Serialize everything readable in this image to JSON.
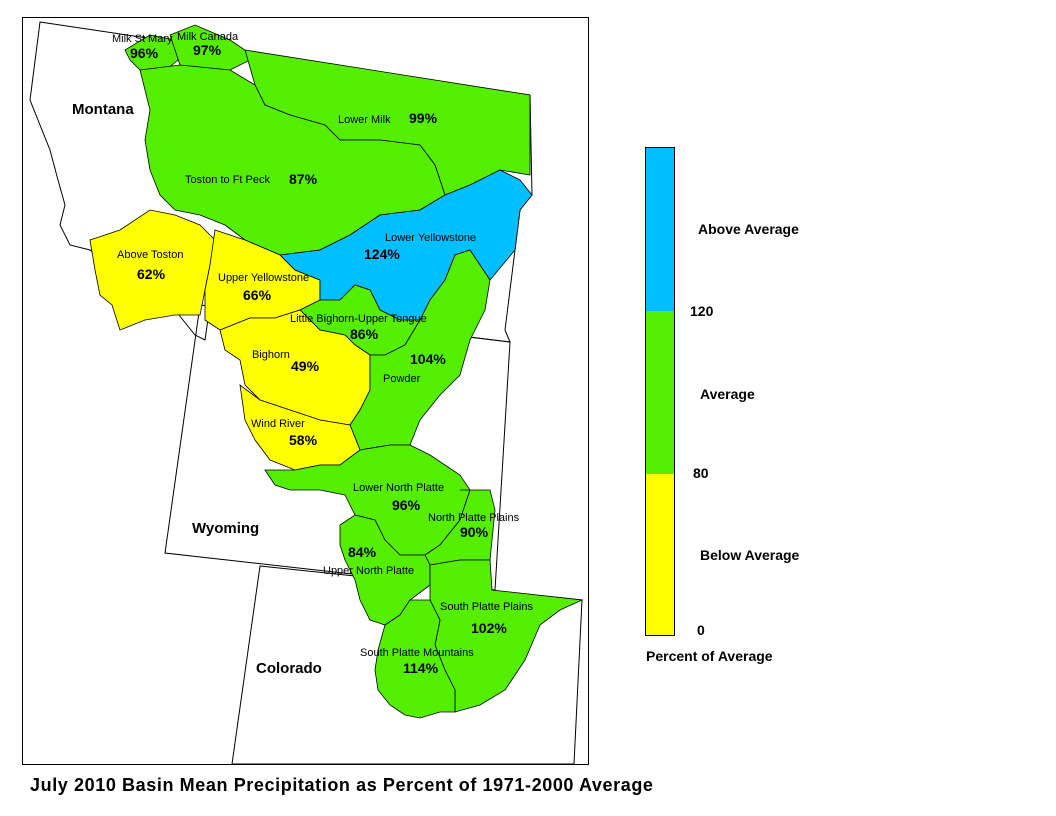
{
  "title": "July 2010 Basin Mean Precipitation as Percent of 1971-2000 Average",
  "states": {
    "montana": "Montana",
    "wyoming": "Wyoming",
    "colorado": "Colorado"
  },
  "colors": {
    "above": "#00BFFF",
    "average": "#55EE00",
    "below": "#FFFF00"
  },
  "basins": [
    {
      "id": "milk-st-mary",
      "name": "Milk St Mary",
      "pct": "96%",
      "category": "average"
    },
    {
      "id": "milk-canada",
      "name": "Milk Canada",
      "pct": "97%",
      "category": "average"
    },
    {
      "id": "lower-milk",
      "name": "Lower Milk",
      "pct": "99%",
      "category": "average"
    },
    {
      "id": "toston-ft-peck",
      "name": "Toston to Ft Peck",
      "pct": "87%",
      "category": "average"
    },
    {
      "id": "above-toston",
      "name": "Above Toston",
      "pct": "62%",
      "category": "below"
    },
    {
      "id": "upper-yellowstone",
      "name": "Upper Yellowstone",
      "pct": "66%",
      "category": "below"
    },
    {
      "id": "lower-yellowstone",
      "name": "Lower Yellowstone",
      "pct": "124%",
      "category": "above"
    },
    {
      "id": "little-bighorn",
      "name": "Little Bighorn-Upper Tongue",
      "pct": "86%",
      "category": "average"
    },
    {
      "id": "bighorn",
      "name": "Bighorn",
      "pct": "49%",
      "category": "below"
    },
    {
      "id": "powder",
      "name": "Powder",
      "pct": "104%",
      "category": "average"
    },
    {
      "id": "wind-river",
      "name": "Wind River",
      "pct": "58%",
      "category": "below"
    },
    {
      "id": "lower-north-platte",
      "name": "Lower North Platte",
      "pct": "96%",
      "category": "average"
    },
    {
      "id": "north-platte-plains",
      "name": "North Platte Plains",
      "pct": "90%",
      "category": "average"
    },
    {
      "id": "upper-north-platte",
      "name": "Upper North Platte",
      "pct": "84%",
      "category": "average"
    },
    {
      "id": "south-platte-plains",
      "name": "South Platte Plains",
      "pct": "102%",
      "category": "average"
    },
    {
      "id": "south-platte-mountains",
      "name": "South Platte Mountains",
      "pct": "114%",
      "category": "average"
    }
  ],
  "legend": {
    "above_label": "Above Average",
    "average_label": "Average",
    "below_label": "Below Average",
    "tick_120": "120",
    "tick_80": "80",
    "tick_0": "0",
    "caption": "Percent of Average"
  }
}
